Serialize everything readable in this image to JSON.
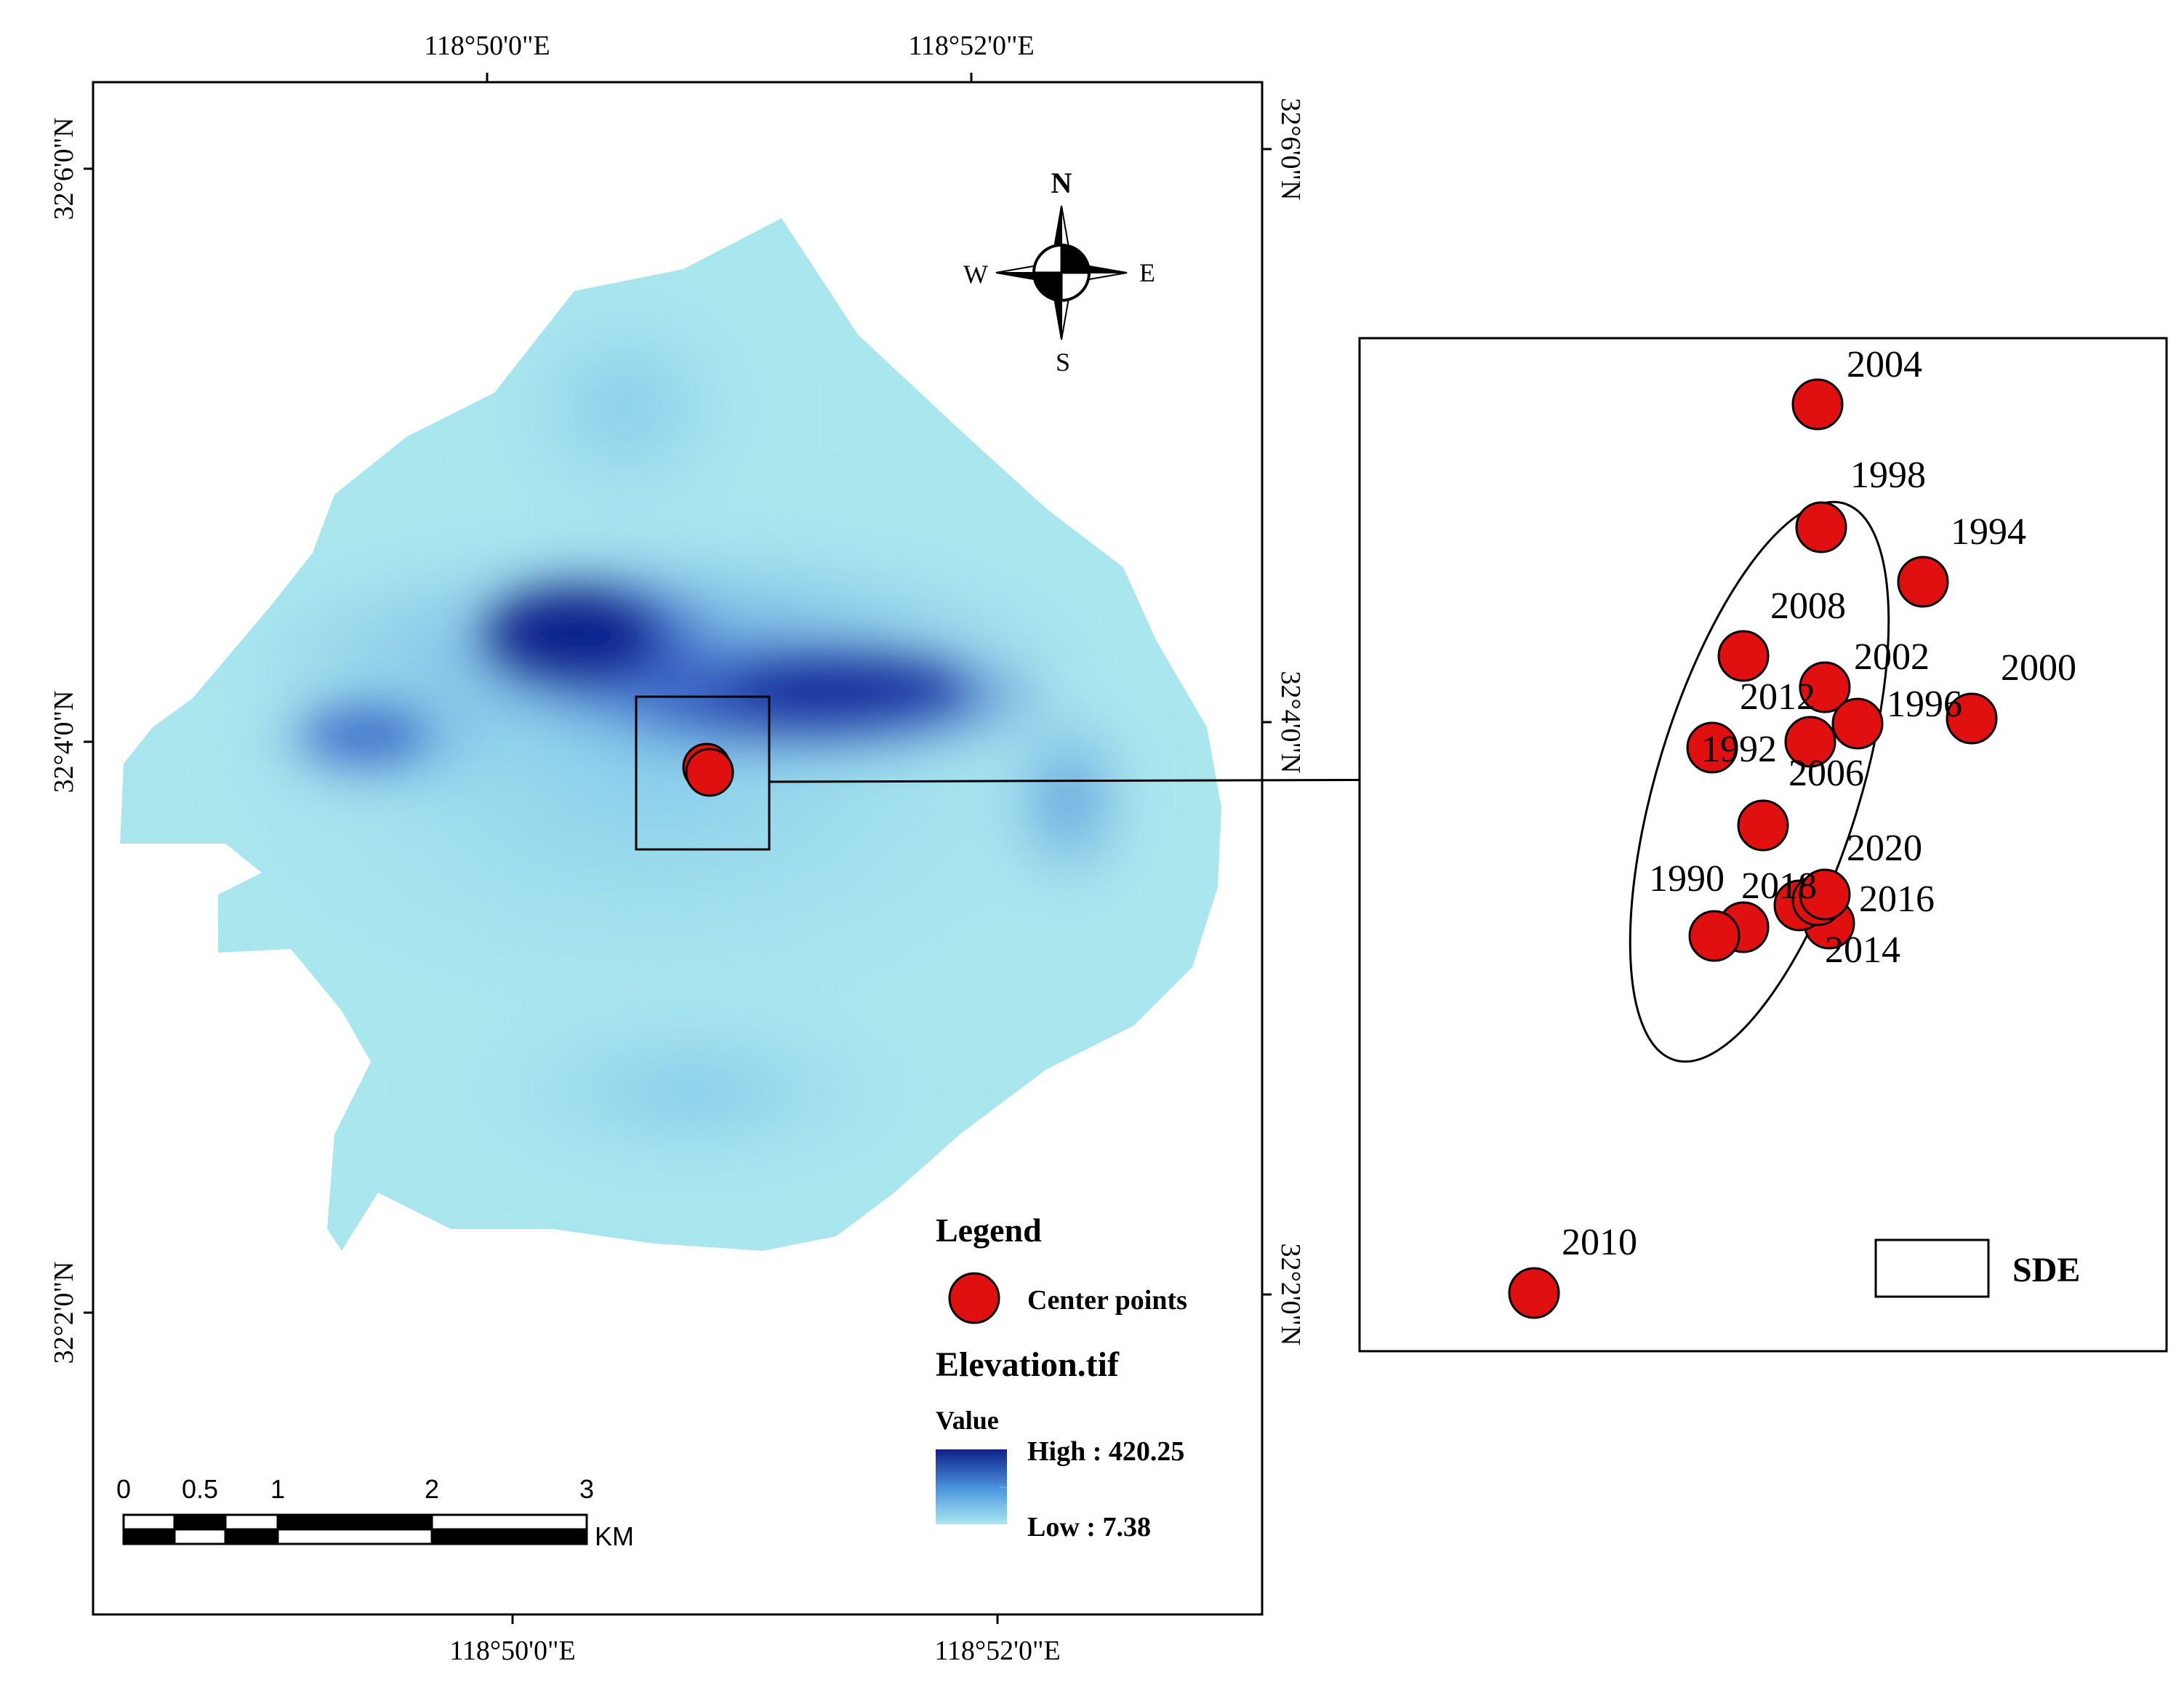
{
  "graticule": {
    "top_lon": [
      "118°50'0\"E",
      "118°52'0\"E"
    ],
    "bottom_lon": [
      "118°50'0\"E",
      "118°52'0\"E"
    ],
    "left_lat": [
      "32°6'0\"N",
      "32°4'0\"N",
      "32°2'0\"N"
    ],
    "right_lat": [
      "32°6'0\"N",
      "32°4'0\"N",
      "32°2'0\"N"
    ]
  },
  "north_arrow": {
    "n": "N",
    "s": "S",
    "e": "E",
    "w": "W"
  },
  "legend": {
    "title": "Legend",
    "points_label": "Center points",
    "raster_title": "Elevation.tif",
    "value_label": "Value",
    "high_label": "High : 420.25",
    "low_label": "Low : 7.38",
    "sde_label": "SDE"
  },
  "elevation": {
    "high": 420.25,
    "low": 7.38,
    "color_high": "#0e1f8c",
    "color_low": "#a9e6ee"
  },
  "point_color": "#e01010",
  "scale_bar": {
    "ticks": [
      "0",
      "0.5",
      "1",
      "2",
      "3"
    ],
    "unit": "KM"
  },
  "years": {
    "y2004": "2004",
    "y1998": "1998",
    "y1994": "1994",
    "y2008": "2008",
    "y2002": "2002",
    "y2000": "2000",
    "y2012": "2012",
    "y1996": "1996",
    "y1992": "1992",
    "y2006": "2006",
    "y2020": "2020",
    "y1990": "1990",
    "y2018": "2018",
    "y2016": "2016",
    "y2014": "2014",
    "y2010": "2010"
  }
}
